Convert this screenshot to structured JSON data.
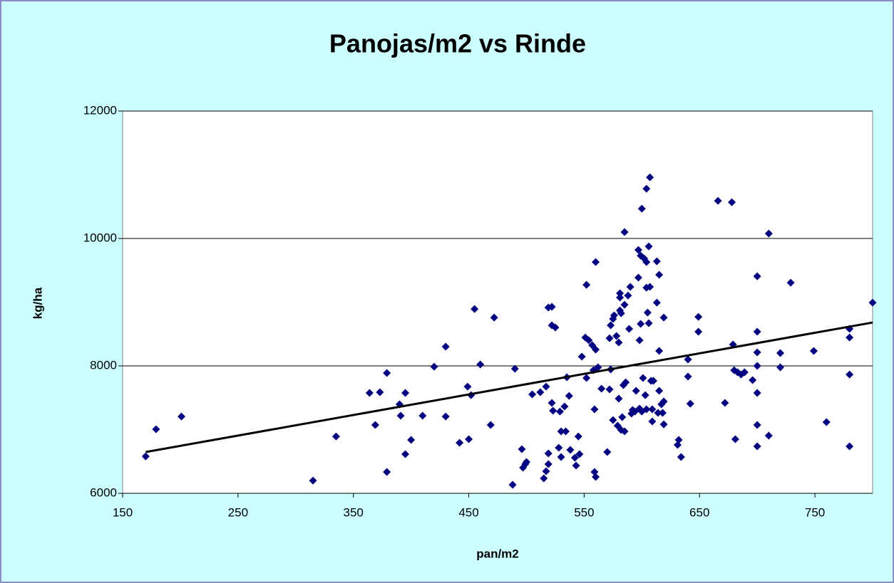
{
  "chart_data": {
    "type": "scatter",
    "title": "Panojas/m2 vs Rinde",
    "x_label": "pan/m2",
    "y_label": "kg/ha",
    "color": "#000080",
    "grid": true,
    "xlim": [
      150,
      800
    ],
    "xticks": [
      150,
      250,
      350,
      450,
      550,
      650,
      750
    ],
    "ylim": [
      6000,
      12000
    ],
    "yticks": [
      6000,
      8000,
      10000,
      12000
    ],
    "x": [
      170,
      179,
      201,
      315,
      335,
      364,
      369,
      373,
      379,
      379,
      390,
      391,
      395,
      395,
      400,
      410,
      420,
      430,
      430,
      442,
      449,
      450,
      452,
      455,
      460,
      469,
      472,
      488,
      490,
      496,
      497,
      499,
      500,
      505,
      512,
      515,
      517,
      517,
      519,
      519,
      519,
      522,
      522,
      522,
      523,
      525,
      528,
      529,
      530,
      530,
      533,
      534,
      535,
      537,
      538,
      542,
      543,
      545,
      546,
      548,
      551,
      552,
      552,
      554,
      557,
      558,
      560,
      559,
      560,
      559,
      560,
      562,
      565,
      570,
      572,
      572,
      573,
      573,
      575,
      575,
      576,
      578,
      579,
      580,
      580,
      581,
      581,
      581,
      582,
      582,
      583,
      584,
      585,
      585,
      585,
      586,
      588,
      589,
      590,
      591,
      592,
      594,
      595,
      597,
      597,
      598,
      598,
      599,
      599,
      600,
      600,
      601,
      602,
      603,
      604,
      604,
      604,
      604,
      605,
      606,
      606,
      607,
      607,
      608,
      609,
      609,
      610,
      613,
      613,
      614,
      615,
      615,
      615,
      617,
      618,
      619,
      619,
      619,
      631,
      632,
      634,
      640,
      640,
      642,
      649,
      649,
      666,
      672,
      678,
      679,
      680,
      681,
      683,
      686,
      689,
      696,
      700,
      700,
      700,
      700,
      700,
      700,
      700,
      710,
      710,
      720,
      720,
      729,
      749,
      760,
      780,
      780,
      780,
      780,
      800
    ],
    "values": [
      6580,
      7005,
      7206,
      6200,
      6893,
      7575,
      7072,
      7586,
      6335,
      7888,
      7396,
      7218,
      7575,
      6614,
      6838,
      7218,
      7988,
      7206,
      8301,
      6793,
      7675,
      6849,
      7541,
      8893,
      8022,
      7072,
      8759,
      6134,
      7955,
      6693,
      6402,
      6458,
      6491,
      7553,
      7586,
      6235,
      7675,
      6346,
      8916,
      6626,
      6458,
      8927,
      8637,
      7419,
      7296,
      8603,
      6715,
      7284,
      6972,
      6570,
      7363,
      6972,
      7821,
      7530,
      6681,
      6559,
      6436,
      6893,
      6614,
      8145,
      8446,
      7810,
      9273,
      8402,
      8324,
      7932,
      8256,
      6335,
      6257,
      7318,
      9630,
      7977,
      7642,
      6648,
      7631,
      8435,
      7944,
      8637,
      8737,
      7150,
      8793,
      8469,
      7061,
      7486,
      8368,
      9139,
      8870,
      9072,
      8826,
      6994,
      7195,
      7698,
      6972,
      8960,
      10100,
      7742,
      9105,
      8581,
      9240,
      7251,
      7307,
      7284,
      7609,
      9385,
      9820,
      7329,
      8402,
      8659,
      9731,
      7284,
      10468,
      7810,
      9686,
      7541,
      10781,
      9228,
      9630,
      7318,
      8837,
      8670,
      9876,
      10960,
      9240,
      7765,
      7318,
      7128,
      7765,
      8993,
      9641,
      7262,
      7609,
      9430,
      8234,
      7396,
      7262,
      7441,
      8759,
      7083,
      6760,
      6838,
      6570,
      8100,
      7832,
      7407,
      8536,
      8770,
      10591,
      7419,
      10568,
      8335,
      7932,
      6849,
      7899,
      7865,
      7899,
      7776,
      8000,
      8536,
      8212,
      7575,
      7072,
      6737,
      9407,
      6905,
      10077,
      8201,
      7977,
      9306,
      8234,
      7117,
      8581,
      8446,
      7865,
      6737,
      8993
    ],
    "trendline": {
      "x": [
        170,
        800
      ],
      "values": [
        6648,
        8681
      ],
      "color": "#000000"
    }
  }
}
